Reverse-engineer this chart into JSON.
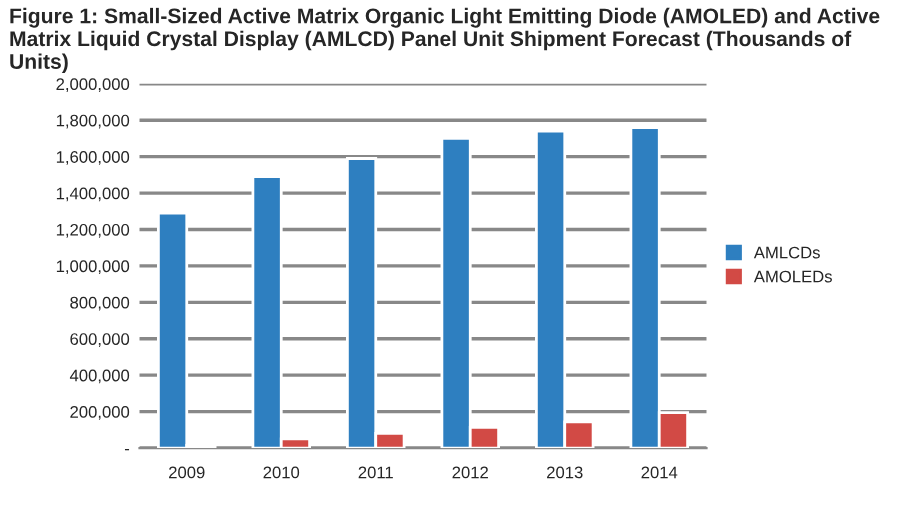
{
  "chart_data": {
    "type": "bar",
    "title": "Figure 1: Small-Sized Active Matrix Organic Light Emitting Diode (AMOLED) and Active Matrix Liquid Crystal Display (AMLCD) Panel Unit Shipment Forecast (Thousands of Units)",
    "categories": [
      "2009",
      "2010",
      "2011",
      "2012",
      "2013",
      "2014"
    ],
    "series": [
      {
        "name": "AMLCDs",
        "color": "#2e7fc0",
        "values": [
          1290000,
          1490000,
          1590000,
          1700000,
          1740000,
          1760000
        ]
      },
      {
        "name": "AMOLEDs",
        "color": "#d24a45",
        "values": [
          15000,
          50000,
          80000,
          113000,
          143000,
          194000
        ]
      }
    ],
    "ylim": [
      0,
      2000000
    ],
    "yticks": [
      {
        "value": 0,
        "label": "-"
      },
      {
        "value": 200000,
        "label": "200,000"
      },
      {
        "value": 400000,
        "label": "400,000"
      },
      {
        "value": 600000,
        "label": "600,000"
      },
      {
        "value": 800000,
        "label": "800,000"
      },
      {
        "value": 1000000,
        "label": "1,000,000"
      },
      {
        "value": 1200000,
        "label": "1,200,000"
      },
      {
        "value": 1400000,
        "label": "1,400,000"
      },
      {
        "value": 1600000,
        "label": "1,600,000"
      },
      {
        "value": 1800000,
        "label": "1,800,000"
      },
      {
        "value": 2000000,
        "label": "2,000,000"
      }
    ],
    "grid": "y",
    "legend": "right"
  }
}
